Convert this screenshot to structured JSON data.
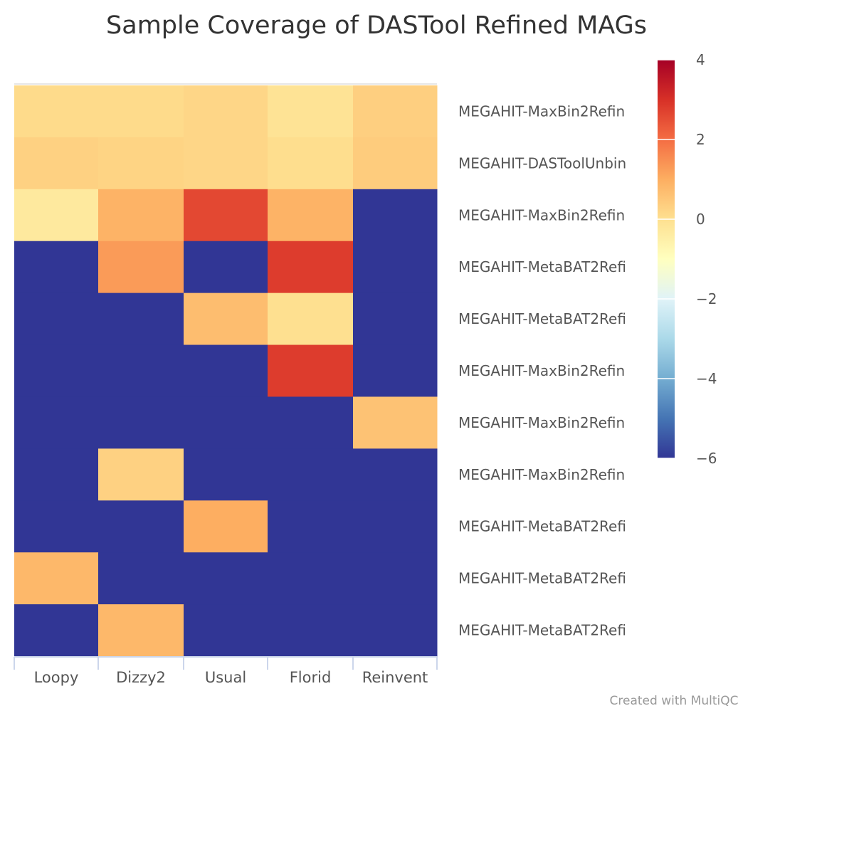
{
  "chart_data": {
    "type": "heatmap",
    "title": "Sample Coverage of DASTool Refined MAGs",
    "x_categories": [
      "Loopy",
      "Dizzy2",
      "Usual",
      "Florid",
      "Reinvent"
    ],
    "y_categories": [
      "MEGAHIT-MaxBin2Refin",
      "MEGAHIT-DASToolUnbin",
      "MEGAHIT-MaxBin2Refin",
      "MEGAHIT-MetaBAT2Refi",
      "MEGAHIT-MetaBAT2Refi",
      "MEGAHIT-MaxBin2Refin",
      "MEGAHIT-MaxBin2Refin",
      "MEGAHIT-MaxBin2Refin",
      "MEGAHIT-MetaBAT2Refi",
      "MEGAHIT-MetaBAT2Refi",
      "MEGAHIT-MetaBAT2Refi"
    ],
    "values": [
      [
        0.1,
        0.1,
        0.2,
        -0.1,
        0.35
      ],
      [
        0.3,
        0.25,
        0.2,
        0.05,
        0.4
      ],
      [
        -0.3,
        0.9,
        2.6,
        0.9,
        -6
      ],
      [
        -6,
        1.3,
        -6,
        2.8,
        -6
      ],
      [
        -6,
        -6,
        0.7,
        0.0,
        -6
      ],
      [
        -6,
        -6,
        -6,
        2.8,
        -6
      ],
      [
        -6,
        -6,
        -6,
        -6,
        0.6
      ],
      [
        -6,
        0.3,
        -6,
        -6,
        -6
      ],
      [
        -6,
        -6,
        1.0,
        -6,
        -6
      ],
      [
        0.8,
        -6,
        -6,
        -6,
        -6
      ],
      [
        -6,
        0.8,
        -6,
        -6,
        -6
      ]
    ],
    "zlim": [
      -6,
      4
    ],
    "colorbar_ticks": [
      "4",
      "2",
      "0",
      "−2",
      "−4",
      "−6"
    ],
    "colorscale": [
      "#313695",
      "#4575b4",
      "#74add1",
      "#abd9e9",
      "#e0f3f8",
      "#ffffbf",
      "#fee090",
      "#fdae61",
      "#f46d43",
      "#d73027",
      "#a50026"
    ],
    "credit": "Created with MultiQC"
  }
}
